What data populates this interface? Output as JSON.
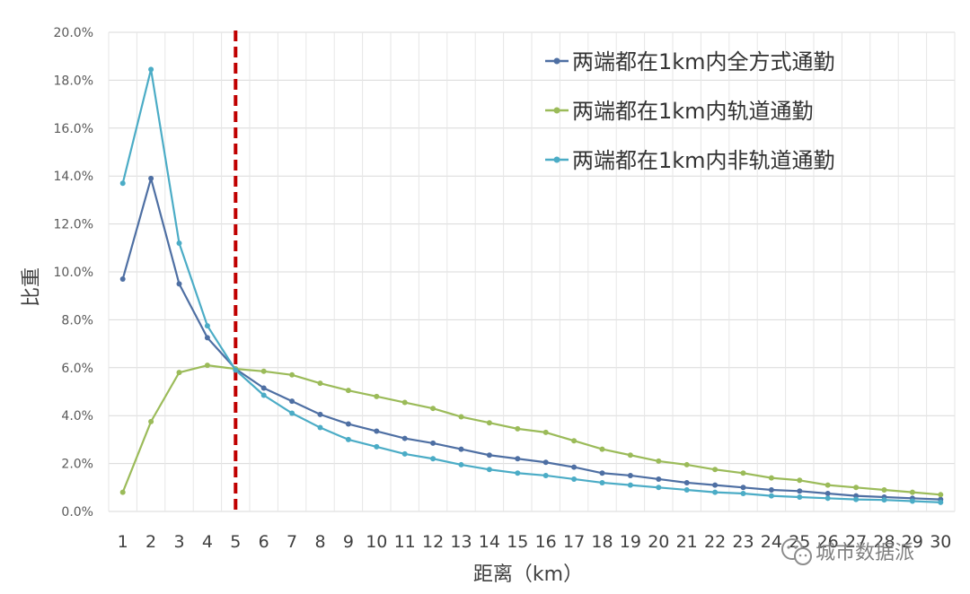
{
  "chart_data": {
    "type": "line",
    "title": "",
    "xlabel": "距离（km）",
    "ylabel": "比重",
    "ylim": [
      0,
      20
    ],
    "y_tick_format": "percent_one_decimal",
    "y_ticks": [
      "0.0%",
      "2.0%",
      "4.0%",
      "6.0%",
      "8.0%",
      "10.0%",
      "12.0%",
      "14.0%",
      "16.0%",
      "18.0%",
      "20.0%"
    ],
    "x": [
      1,
      2,
      3,
      4,
      5,
      6,
      7,
      8,
      9,
      10,
      11,
      12,
      13,
      14,
      15,
      16,
      17,
      18,
      19,
      20,
      21,
      22,
      23,
      24,
      25,
      26,
      27,
      28,
      29,
      30
    ],
    "x_tick_labels": [
      "1",
      "2",
      "3",
      "4",
      "5",
      "6",
      "7",
      "8",
      "9",
      "10",
      "11",
      "12",
      "13",
      "14",
      "15",
      "16",
      "17",
      "18",
      "19",
      "20",
      "21",
      "22",
      "23",
      "24",
      "25",
      "26",
      "27",
      "28",
      "29",
      "30"
    ],
    "grid": true,
    "legend_position": "top-right",
    "reference_line": {
      "x": 5,
      "style": "dashed",
      "color": "#c00000"
    },
    "series": [
      {
        "name": "两端都在1km内全方式通勤",
        "color": "#4e6fa3",
        "values": [
          9.7,
          13.9,
          9.5,
          7.25,
          5.95,
          5.15,
          4.6,
          4.05,
          3.65,
          3.35,
          3.05,
          2.85,
          2.6,
          2.35,
          2.2,
          2.05,
          1.85,
          1.6,
          1.5,
          1.35,
          1.2,
          1.1,
          1.0,
          0.9,
          0.85,
          0.75,
          0.65,
          0.6,
          0.55,
          0.5
        ]
      },
      {
        "name": "两端都在1km内轨道通勤",
        "color": "#9bbb59",
        "values": [
          0.8,
          3.75,
          5.8,
          6.1,
          5.95,
          5.85,
          5.7,
          5.35,
          5.05,
          4.8,
          4.55,
          4.3,
          3.95,
          3.7,
          3.45,
          3.3,
          2.95,
          2.6,
          2.35,
          2.1,
          1.95,
          1.75,
          1.6,
          1.4,
          1.3,
          1.1,
          1.0,
          0.9,
          0.8,
          0.7
        ]
      },
      {
        "name": "两端都在1km内非轨道通勤",
        "color": "#4bacc6",
        "values": [
          13.7,
          18.45,
          11.2,
          7.75,
          5.9,
          4.85,
          4.1,
          3.5,
          3.0,
          2.7,
          2.4,
          2.2,
          1.95,
          1.75,
          1.6,
          1.5,
          1.35,
          1.2,
          1.1,
          1.0,
          0.9,
          0.8,
          0.75,
          0.65,
          0.6,
          0.55,
          0.5,
          0.48,
          0.43,
          0.38
        ]
      }
    ]
  },
  "watermark": {
    "text": "城市数据派",
    "icon": "wechat-icon"
  }
}
